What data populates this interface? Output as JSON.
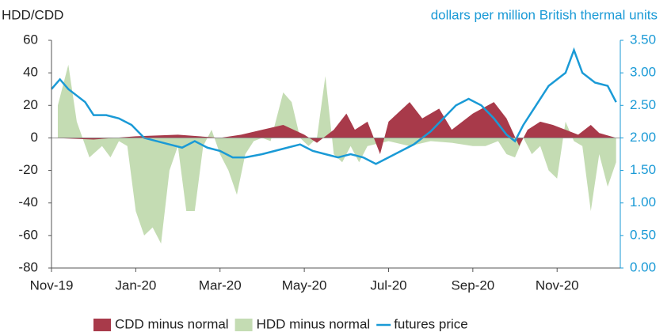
{
  "chart_data": {
    "type": "area_line",
    "y_label": "HDD/CDD",
    "y2_label": "dollars per million British thermal units",
    "xlim": [
      0,
      13.5
    ],
    "xticks": [
      {
        "value": 0,
        "label": "Nov-19"
      },
      {
        "value": 2,
        "label": "Jan-20"
      },
      {
        "value": 4,
        "label": "Mar-20"
      },
      {
        "value": 6,
        "label": "May-20"
      },
      {
        "value": 8,
        "label": "Jul-20"
      },
      {
        "value": 10,
        "label": "Sep-20"
      },
      {
        "value": 12,
        "label": "Nov-20"
      }
    ],
    "ylim": [
      -80,
      60
    ],
    "yticks": [
      -80,
      -60,
      -40,
      -20,
      0,
      20,
      40,
      60
    ],
    "y2lim": [
      0,
      3.5
    ],
    "y2ticks": [
      {
        "value": 0,
        "label": "0.00"
      },
      {
        "value": 0.5,
        "label": "0.50"
      },
      {
        "value": 1,
        "label": "1.00"
      },
      {
        "value": 1.5,
        "label": "1.50"
      },
      {
        "value": 2,
        "label": "2.00"
      },
      {
        "value": 2.5,
        "label": "2.50"
      },
      {
        "value": 3,
        "label": "3.00"
      },
      {
        "value": 3.5,
        "label": "3.50"
      }
    ],
    "series": [
      {
        "name": "CDD minus normal",
        "color": "#a83a4a",
        "kind": "area",
        "x": [
          0,
          1,
          2,
          3,
          4,
          4.5,
          5,
          5.5,
          6,
          6.3,
          6.7,
          7,
          7.2,
          7.5,
          7.8,
          8,
          8.5,
          8.8,
          9.2,
          9.5,
          10,
          10.5,
          10.8,
          11.1,
          11.3,
          11.6,
          11.9,
          12.2,
          12.5,
          12.8,
          13,
          13.4
        ],
        "values": [
          0,
          -1,
          1,
          2,
          0,
          2,
          5,
          8,
          2,
          -3,
          5,
          15,
          5,
          10,
          -10,
          10,
          22,
          12,
          18,
          5,
          15,
          22,
          12,
          -5,
          5,
          10,
          8,
          5,
          2,
          8,
          3,
          0
        ]
      },
      {
        "name": "HDD minus normal",
        "color": "#c4dcb3",
        "kind": "area",
        "x": [
          0.15,
          0.4,
          0.6,
          0.9,
          1.2,
          1.4,
          1.6,
          1.8,
          2.0,
          2.2,
          2.4,
          2.6,
          2.8,
          3.0,
          3.2,
          3.4,
          3.6,
          3.8,
          4.0,
          4.2,
          4.4,
          4.6,
          4.8,
          5.0,
          5.2,
          5.5,
          5.7,
          5.9,
          6.1,
          6.3,
          6.5,
          6.7,
          6.9,
          7.1,
          7.3,
          7.5,
          8.0,
          8.5,
          9.0,
          9.5,
          10.0,
          10.3,
          10.6,
          10.8,
          11.0,
          11.2,
          11.4,
          11.6,
          11.8,
          12.0,
          12.2,
          12.4,
          12.6,
          12.8,
          13.0,
          13.2,
          13.4
        ],
        "values": [
          20,
          45,
          10,
          -12,
          -5,
          -12,
          -2,
          -5,
          -45,
          -60,
          -55,
          -65,
          -20,
          -5,
          -45,
          -45,
          -5,
          5,
          -10,
          -20,
          -35,
          -10,
          -2,
          0,
          -2,
          28,
          22,
          0,
          -5,
          0,
          38,
          -10,
          -15,
          -5,
          -15,
          -5,
          -2,
          -5,
          -2,
          -3,
          -5,
          -5,
          -2,
          -10,
          -12,
          0,
          -10,
          -5,
          -20,
          -25,
          10,
          -2,
          -5,
          -45,
          -10,
          -30,
          -15
        ]
      },
      {
        "name": "futures price",
        "color": "#1a9ad6",
        "kind": "line",
        "axis": "y2",
        "x": [
          0,
          0.2,
          0.4,
          0.6,
          0.8,
          1.0,
          1.3,
          1.6,
          1.9,
          2.2,
          2.5,
          2.8,
          3.1,
          3.4,
          3.7,
          4.0,
          4.3,
          4.6,
          5.0,
          5.3,
          5.6,
          5.9,
          6.2,
          6.5,
          6.8,
          7.1,
          7.4,
          7.7,
          8.0,
          8.3,
          8.6,
          9.0,
          9.3,
          9.6,
          9.9,
          10.2,
          10.5,
          10.8,
          11.0,
          11.2,
          11.5,
          11.8,
          12.2,
          12.4,
          12.6,
          12.9,
          13.2,
          13.4
        ],
        "values": [
          2.75,
          2.9,
          2.75,
          2.65,
          2.55,
          2.35,
          2.35,
          2.3,
          2.2,
          2.0,
          1.95,
          1.9,
          1.85,
          1.95,
          1.85,
          1.8,
          1.7,
          1.7,
          1.75,
          1.8,
          1.85,
          1.9,
          1.8,
          1.75,
          1.7,
          1.75,
          1.7,
          1.6,
          1.7,
          1.8,
          1.9,
          2.1,
          2.3,
          2.5,
          2.6,
          2.5,
          2.3,
          2.05,
          1.95,
          2.2,
          2.5,
          2.8,
          3.0,
          3.35,
          3.0,
          2.85,
          2.8,
          2.55
        ]
      }
    ]
  }
}
